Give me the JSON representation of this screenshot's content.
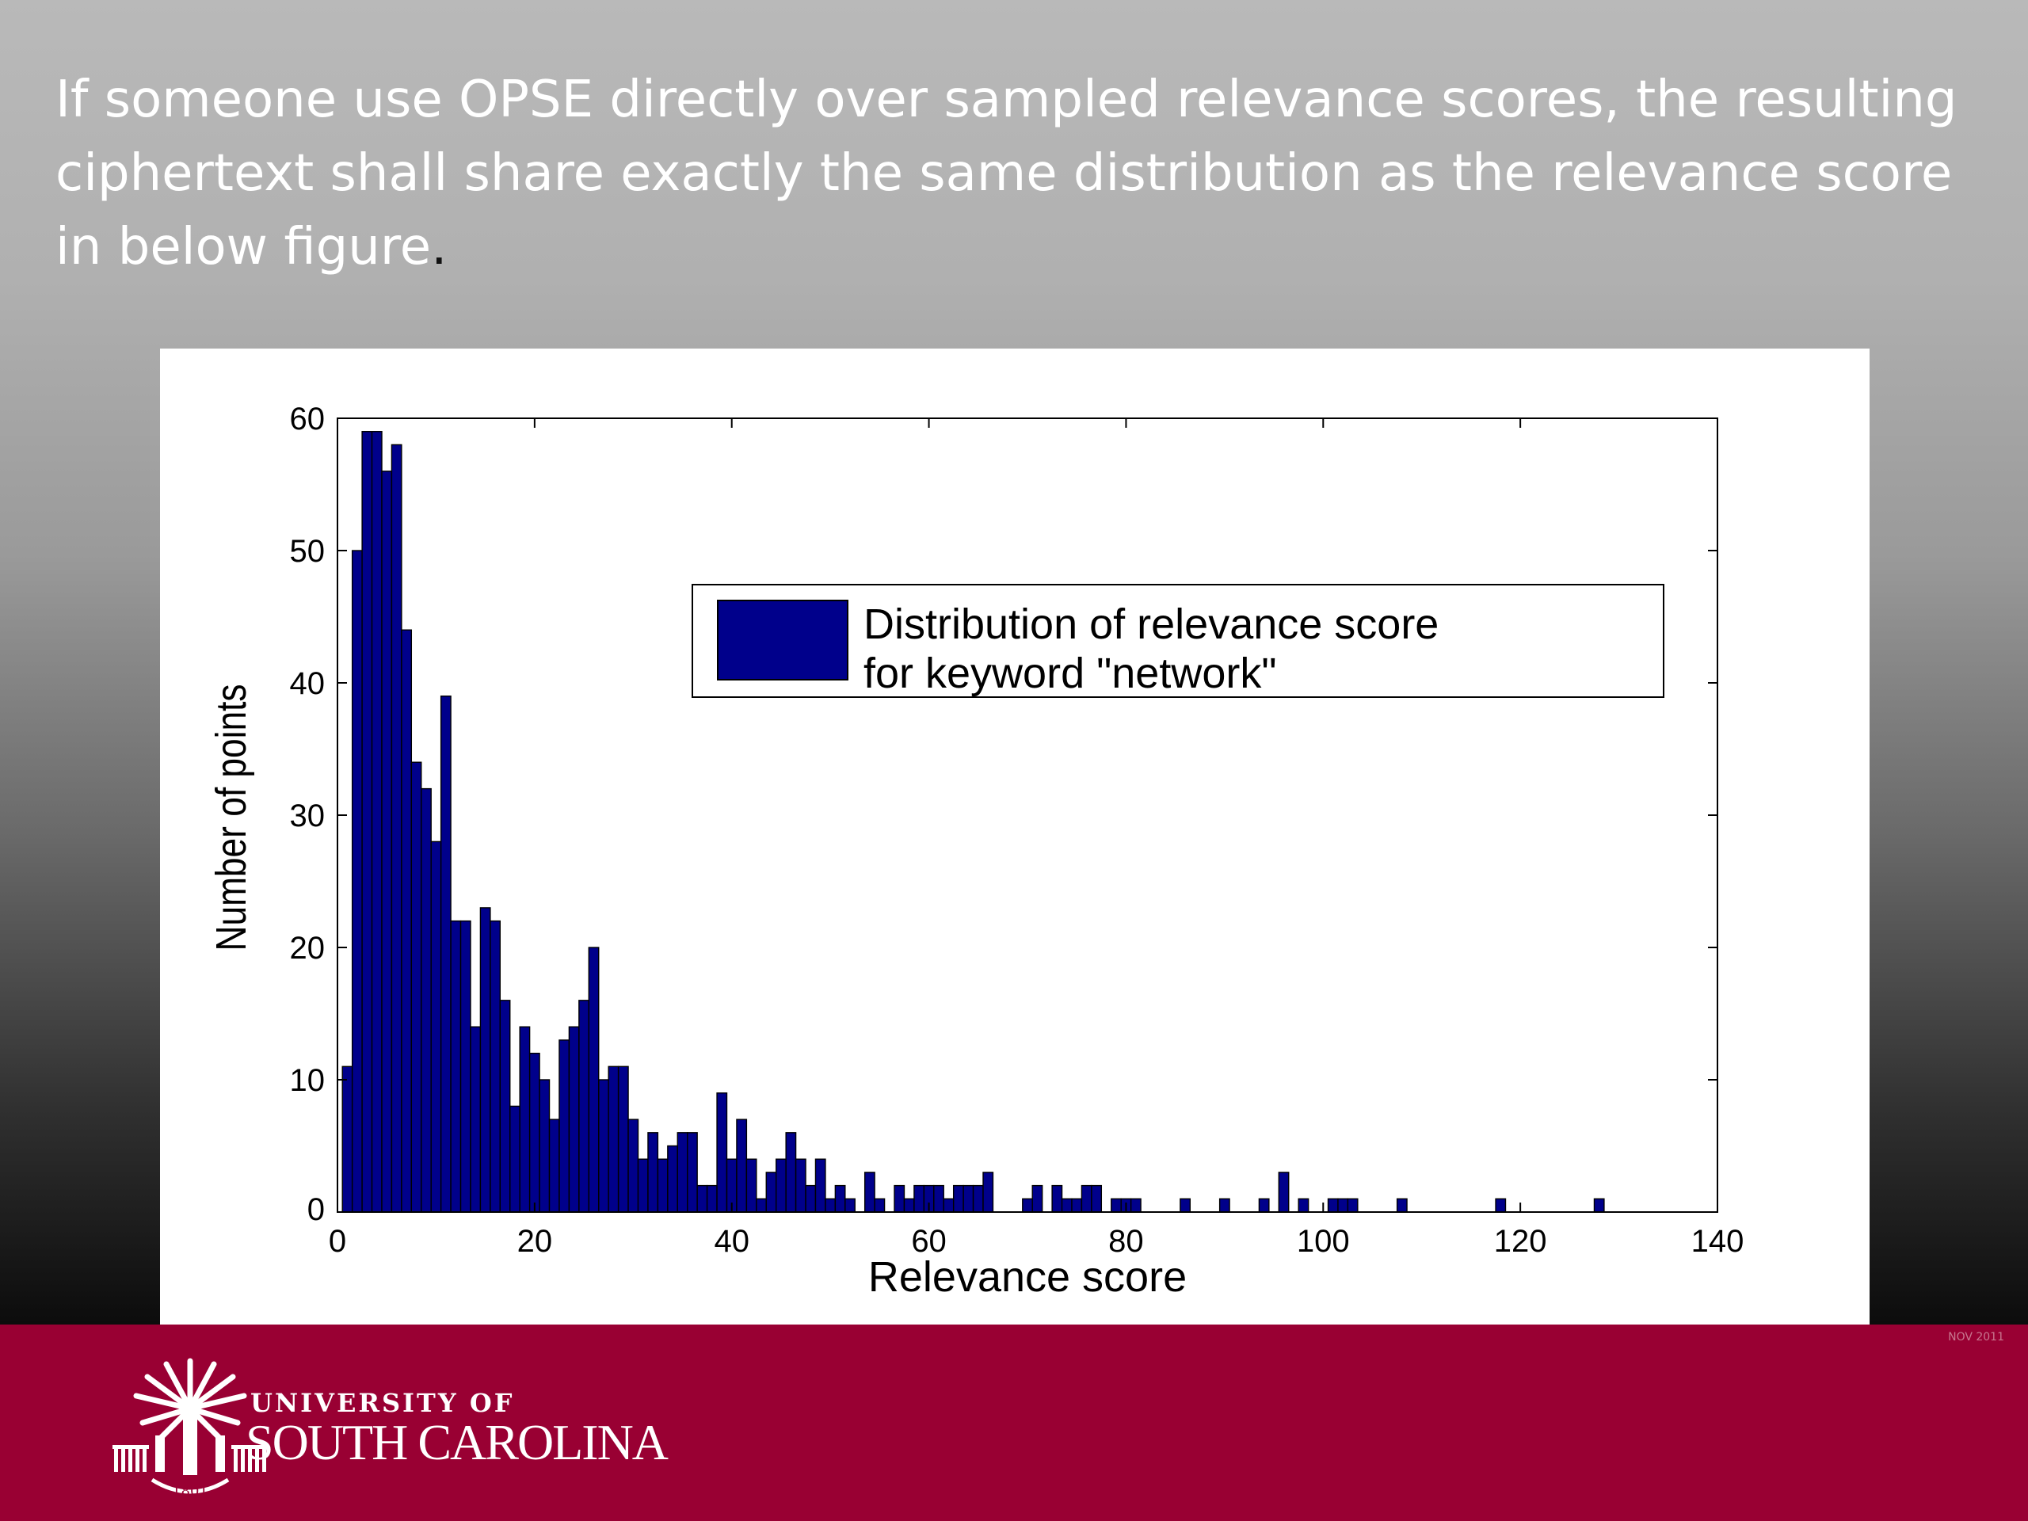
{
  "slide": {
    "text": "If someone use OPSE directly over sampled relevance scores, the resulting ciphertext shall share exactly the same distribution as the relevance score in below figure",
    "text_end": "."
  },
  "footer": {
    "university_line1": "UNIVERSITY OF",
    "university_line2": "SOUTH CAROLINA",
    "date": "NOV 2011",
    "logo_year": "1801",
    "color": "#990033"
  },
  "chart_data": {
    "type": "bar",
    "xlabel": "Relevance score",
    "ylabel": "Number of points",
    "xlim": [
      0,
      140
    ],
    "ylim": [
      0,
      60
    ],
    "xticks": [
      0,
      20,
      40,
      60,
      80,
      100,
      120,
      140
    ],
    "yticks": [
      0,
      10,
      20,
      30,
      40,
      50,
      60
    ],
    "bar_width": 1,
    "bar_color": "#00008b",
    "legend": {
      "placement": "top-right",
      "lines": [
        "Distribution of relevance score",
        "for keyword \"network\""
      ]
    },
    "x": [
      1,
      2,
      3,
      4,
      5,
      6,
      7,
      8,
      9,
      10,
      11,
      12,
      13,
      14,
      15,
      16,
      17,
      18,
      19,
      20,
      21,
      22,
      23,
      24,
      25,
      26,
      27,
      28,
      29,
      30,
      31,
      32,
      33,
      34,
      35,
      36,
      37,
      38,
      39,
      40,
      41,
      42,
      43,
      44,
      45,
      46,
      47,
      48,
      49,
      50,
      51,
      52,
      54,
      55,
      57,
      58,
      59,
      60,
      61,
      62,
      63,
      64,
      65,
      66,
      70,
      71,
      73,
      74,
      75,
      76,
      77,
      79,
      80,
      81,
      86,
      90,
      94,
      96,
      98,
      101,
      102,
      103,
      108,
      118,
      128
    ],
    "values": [
      11,
      50,
      59,
      59,
      56,
      58,
      44,
      34,
      32,
      28,
      39,
      22,
      22,
      14,
      23,
      22,
      16,
      8,
      14,
      12,
      10,
      7,
      13,
      14,
      16,
      20,
      10,
      11,
      11,
      7,
      4,
      6,
      4,
      5,
      6,
      6,
      2,
      2,
      9,
      4,
      7,
      4,
      1,
      3,
      4,
      6,
      4,
      2,
      4,
      1,
      2,
      1,
      3,
      1,
      2,
      1,
      2,
      2,
      2,
      1,
      2,
      2,
      2,
      3,
      1,
      2,
      2,
      1,
      1,
      2,
      2,
      1,
      1,
      1,
      1,
      1,
      1,
      3,
      1,
      1,
      1,
      1,
      1,
      1,
      1
    ]
  }
}
